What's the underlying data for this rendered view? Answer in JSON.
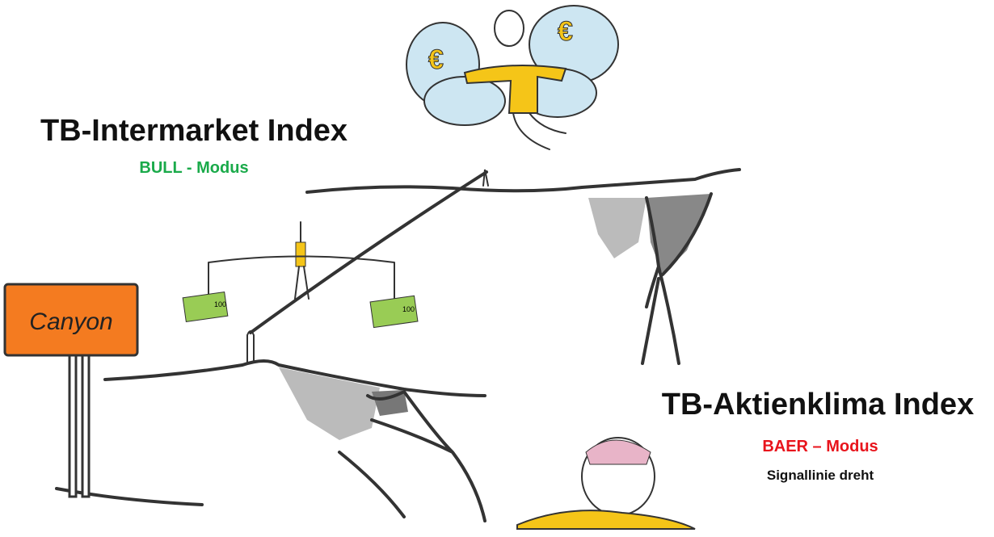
{
  "left_label": {
    "title": "TB-Intermarket Index",
    "mode": "BULL - Modus"
  },
  "right_label": {
    "title": "TB-Aktienklima Index",
    "mode": "BAER – Modus",
    "note": "Signallinie dreht"
  },
  "sign": {
    "text": "Canyon"
  },
  "angel": {
    "wing_symbol": "€"
  },
  "money": {
    "label": "100"
  }
}
